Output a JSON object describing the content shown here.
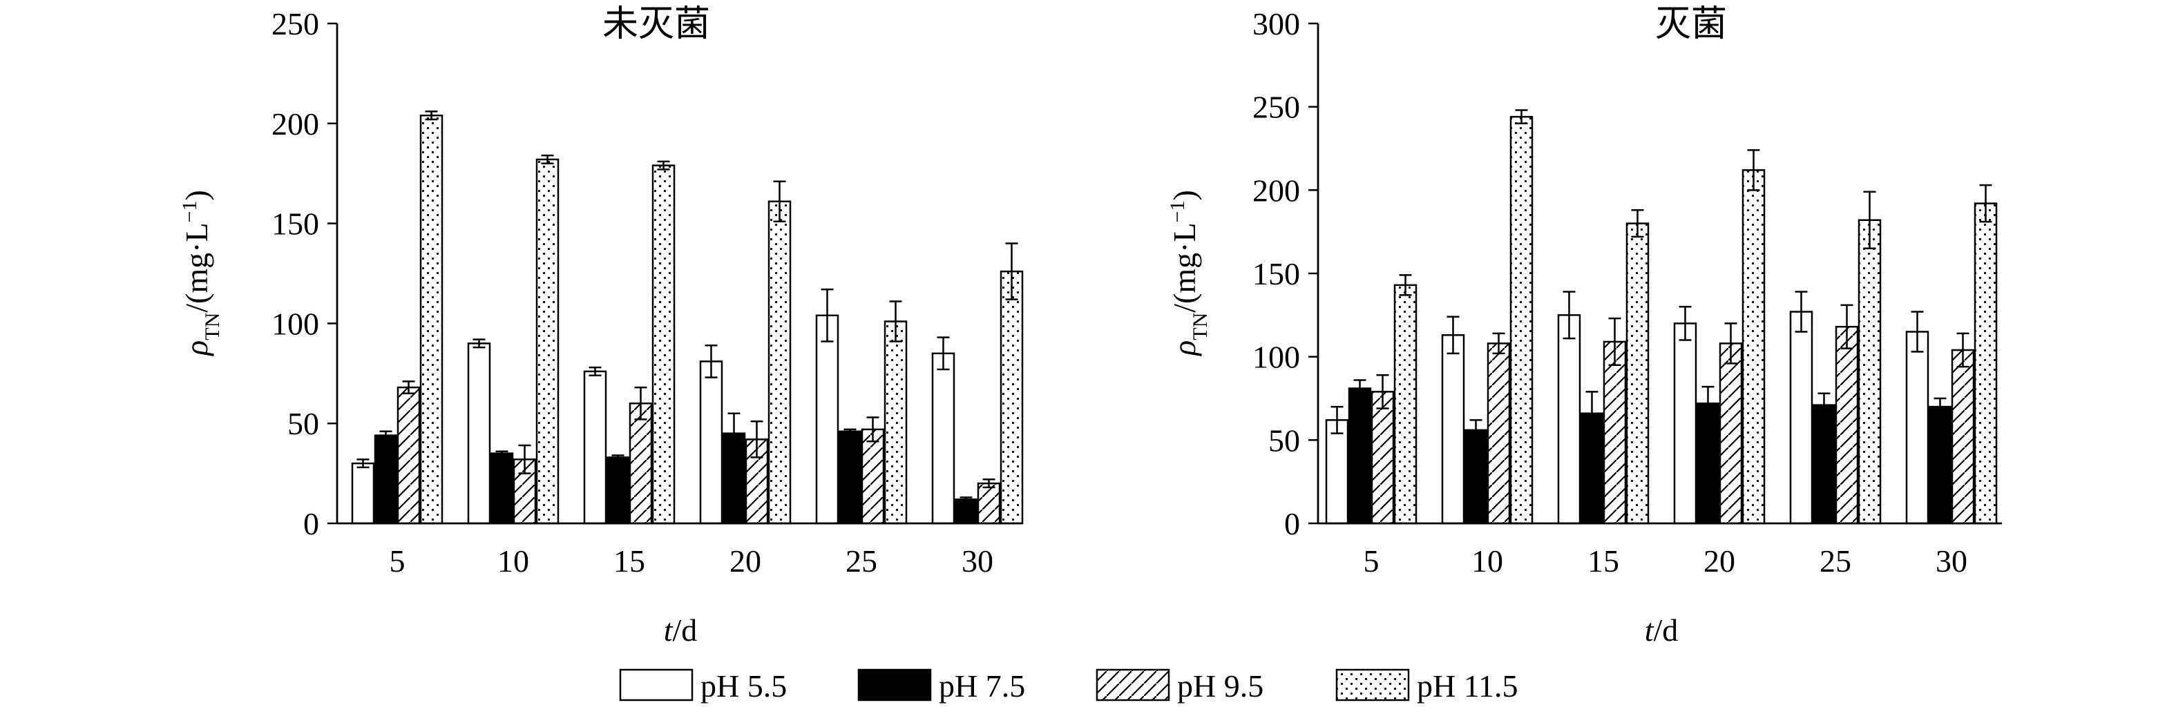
{
  "legend": {
    "entries": [
      {
        "label": "pH 5.5",
        "fill": "white"
      },
      {
        "label": "pH 7.5",
        "fill": "black"
      },
      {
        "label": "pH 9.5",
        "fill": "hatch"
      },
      {
        "label": "pH 11.5",
        "fill": "dots"
      }
    ]
  },
  "chart_data": [
    {
      "type": "bar",
      "title": "未灭菌",
      "xlabel_italic": "t",
      "xlabel_rest": "/d",
      "ylabel_rho": "ρ",
      "ylabel_sub": "TN",
      "ylabel_main": "/(mg·L",
      "ylabel_sup": "−1",
      "ylabel_close": ")",
      "ylim": [
        0,
        250
      ],
      "yticks": [
        "0",
        "50",
        "100",
        "150",
        "200",
        "250"
      ],
      "yticks_values": [
        0,
        50,
        100,
        150,
        200,
        250
      ],
      "categories": [
        "5",
        "10",
        "15",
        "20",
        "25",
        "30"
      ],
      "series": [
        {
          "name": "pH 5.5",
          "values": [
            30,
            90,
            76,
            81,
            104,
            85
          ],
          "errors": [
            2,
            2,
            2,
            8,
            13,
            8
          ]
        },
        {
          "name": "pH 7.5",
          "values": [
            44,
            35,
            33,
            45,
            46,
            12
          ],
          "errors": [
            2,
            1,
            1,
            10,
            1,
            1
          ]
        },
        {
          "name": "pH 9.5",
          "values": [
            68,
            32,
            60,
            42,
            47,
            20
          ],
          "errors": [
            3,
            7,
            8,
            9,
            6,
            2
          ]
        },
        {
          "name": "pH 11.5",
          "values": [
            204,
            182,
            179,
            161,
            101,
            126
          ],
          "errors": [
            2,
            2,
            2,
            10,
            10,
            14
          ]
        }
      ]
    },
    {
      "type": "bar",
      "title": "灭菌",
      "xlabel_italic": "t",
      "xlabel_rest": "/d",
      "ylabel_rho": "ρ",
      "ylabel_sub": "TN",
      "ylabel_main": "/(mg·L",
      "ylabel_sup": "−1",
      "ylabel_close": ")",
      "ylim": [
        0,
        300
      ],
      "yticks": [
        "0",
        "50",
        "100",
        "150",
        "200",
        "250",
        "300"
      ],
      "yticks_values": [
        0,
        50,
        100,
        150,
        200,
        250,
        300
      ],
      "categories": [
        "5",
        "10",
        "15",
        "20",
        "25",
        "30"
      ],
      "series": [
        {
          "name": "pH 5.5",
          "values": [
            62,
            113,
            125,
            120,
            127,
            115
          ],
          "errors": [
            8,
            11,
            14,
            10,
            12,
            12
          ]
        },
        {
          "name": "pH 7.5",
          "values": [
            81,
            56,
            66,
            72,
            71,
            70
          ],
          "errors": [
            5,
            6,
            13,
            10,
            7,
            5
          ]
        },
        {
          "name": "pH 9.5",
          "values": [
            79,
            108,
            109,
            108,
            118,
            104
          ],
          "errors": [
            10,
            6,
            14,
            12,
            13,
            10
          ]
        },
        {
          "name": "pH 11.5",
          "values": [
            143,
            244,
            180,
            212,
            182,
            192
          ],
          "errors": [
            6,
            4,
            8,
            12,
            17,
            11
          ]
        }
      ]
    }
  ]
}
